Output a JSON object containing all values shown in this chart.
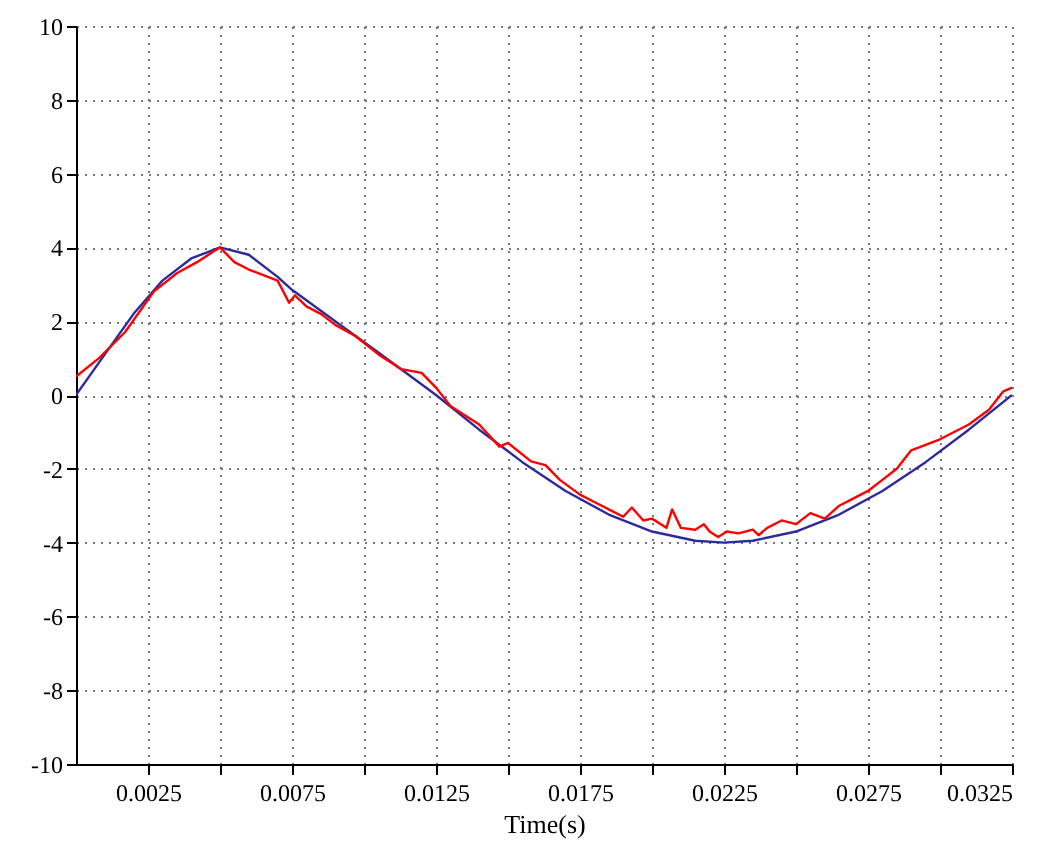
{
  "chart_data": {
    "type": "line",
    "xlabel": "Time(s)",
    "xlim": [
      0,
      0.0325
    ],
    "ylim": [
      -10,
      10
    ],
    "xticks": [
      {
        "value": 0.0025,
        "label": "0.0025"
      },
      {
        "value": 0.005,
        "label": null
      },
      {
        "value": 0.0075,
        "label": "0.0075"
      },
      {
        "value": 0.01,
        "label": null
      },
      {
        "value": 0.0125,
        "label": "0.0125"
      },
      {
        "value": 0.015,
        "label": null
      },
      {
        "value": 0.0175,
        "label": "0.0175"
      },
      {
        "value": 0.02,
        "label": null
      },
      {
        "value": 0.0225,
        "label": "0.0225"
      },
      {
        "value": 0.025,
        "label": null
      },
      {
        "value": 0.0275,
        "label": "0.0275"
      },
      {
        "value": 0.03,
        "label": null
      },
      {
        "value": 0.0325,
        "label": "0.0325"
      }
    ],
    "yticks": [
      -10,
      -8,
      -6,
      -4,
      -2,
      0,
      2,
      4,
      6,
      8,
      10
    ],
    "grid": true,
    "line_style": "solid",
    "series": [
      {
        "color": "#2b2b9c",
        "x": [
          0,
          0.001,
          0.002,
          0.003,
          0.004,
          0.005,
          0.006,
          0.007,
          0.0075,
          0.009,
          0.0105,
          0.0125,
          0.014,
          0.0155,
          0.017,
          0.0185,
          0.02,
          0.0215,
          0.0225,
          0.0235,
          0.025,
          0.0265,
          0.028,
          0.0295,
          0.031,
          0.0325
        ],
        "values": [
          0,
          1.1,
          2.2,
          3.1,
          3.7,
          4.0,
          3.8,
          3.2,
          2.85,
          2.0,
          1.15,
          0,
          -0.94,
          -1.82,
          -2.6,
          -3.24,
          -3.7,
          -3.95,
          -4.0,
          -3.95,
          -3.7,
          -3.24,
          -2.6,
          -1.82,
          -0.94,
          0
        ]
      },
      {
        "color": "#ff0000",
        "x": [
          0,
          0.0008,
          0.0017,
          0.0027,
          0.0035,
          0.0042,
          0.0048,
          0.005,
          0.0055,
          0.006,
          0.007,
          0.0074,
          0.0076,
          0.008,
          0.0085,
          0.009,
          0.0097,
          0.0105,
          0.0113,
          0.012,
          0.0125,
          0.013,
          0.014,
          0.0147,
          0.015,
          0.0158,
          0.0163,
          0.0168,
          0.0175,
          0.018,
          0.0185,
          0.019,
          0.0193,
          0.0197,
          0.02,
          0.0205,
          0.0207,
          0.021,
          0.0215,
          0.0218,
          0.022,
          0.0223,
          0.0226,
          0.023,
          0.0235,
          0.0237,
          0.024,
          0.0245,
          0.025,
          0.0255,
          0.026,
          0.0265,
          0.027,
          0.0275,
          0.028,
          0.0285,
          0.029,
          0.03,
          0.031,
          0.0317,
          0.0322,
          0.0325
        ],
        "values": [
          0.5,
          1.0,
          1.7,
          2.8,
          3.3,
          3.6,
          3.9,
          4.0,
          3.6,
          3.4,
          3.1,
          2.5,
          2.7,
          2.4,
          2.2,
          1.9,
          1.6,
          1.1,
          0.7,
          0.6,
          0.2,
          -0.3,
          -0.8,
          -1.4,
          -1.3,
          -1.8,
          -1.9,
          -2.3,
          -2.7,
          -2.9,
          -3.1,
          -3.3,
          -3.05,
          -3.4,
          -3.35,
          -3.6,
          -3.1,
          -3.6,
          -3.65,
          -3.5,
          -3.7,
          -3.85,
          -3.7,
          -3.75,
          -3.65,
          -3.8,
          -3.6,
          -3.4,
          -3.5,
          -3.2,
          -3.35,
          -3.0,
          -2.8,
          -2.6,
          -2.3,
          -2.0,
          -1.5,
          -1.2,
          -0.8,
          -0.4,
          0.1,
          0.2
        ]
      }
    ]
  }
}
